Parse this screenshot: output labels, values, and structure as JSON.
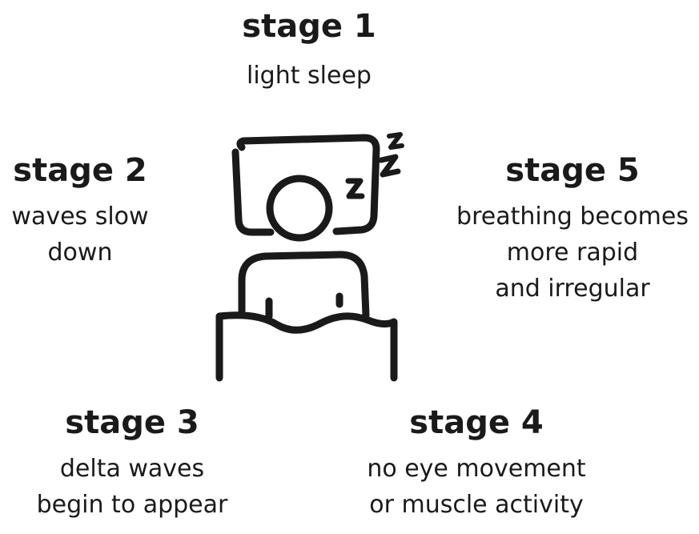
{
  "stages": [
    {
      "title": "stage 1",
      "lines": [
        "light sleep"
      ]
    },
    {
      "title": "stage 2",
      "lines": [
        "waves slow",
        "down"
      ]
    },
    {
      "title": "stage 3",
      "lines": [
        "delta waves",
        "begin to appear"
      ]
    },
    {
      "title": "stage 4",
      "lines": [
        "no eye movement",
        "or muscle activity"
      ]
    },
    {
      "title": "stage 5",
      "lines": [
        "breathing becomes",
        "more rapid",
        "and irregular"
      ]
    }
  ],
  "illustration": {
    "icon": "sleeping-person-icon",
    "stroke_color": "#1a1a1a"
  }
}
